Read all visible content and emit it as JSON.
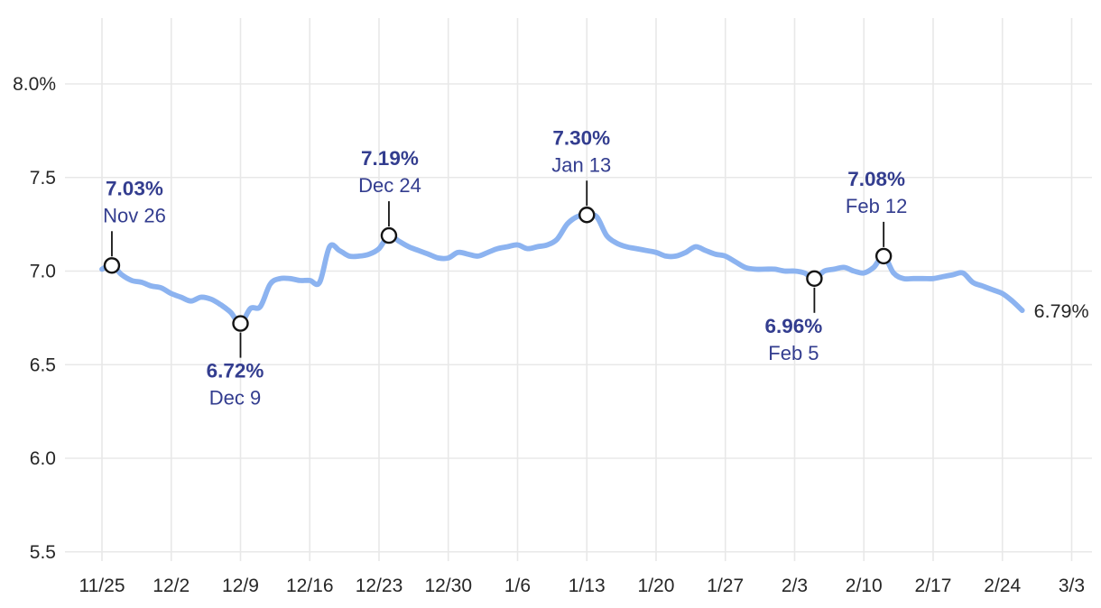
{
  "chart_data": {
    "type": "line",
    "x_axis": {
      "tick_labels": [
        "11/25",
        "12/2",
        "12/9",
        "12/16",
        "12/23",
        "12/30",
        "1/6",
        "1/13",
        "1/20",
        "1/27",
        "2/3",
        "2/10",
        "2/17",
        "2/24",
        "3/3"
      ],
      "tick_interval_days": 7
    },
    "y_axis": {
      "tick_labels": [
        "8.0%",
        "7.5",
        "7.0",
        "6.5",
        "6.0",
        "5.5"
      ],
      "tick_values": [
        8.0,
        7.5,
        7.0,
        6.5,
        6.0,
        5.5
      ]
    },
    "ylim": [
      5.5,
      8.0
    ],
    "grid": true,
    "series": {
      "start_label": "11/25",
      "values": [
        7.01,
        7.03,
        6.98,
        6.95,
        6.94,
        6.92,
        6.91,
        6.88,
        6.86,
        6.84,
        6.86,
        6.85,
        6.82,
        6.78,
        6.72,
        6.8,
        6.81,
        6.93,
        6.96,
        6.96,
        6.95,
        6.95,
        6.94,
        7.13,
        7.11,
        7.08,
        7.08,
        7.09,
        7.12,
        7.19,
        7.16,
        7.13,
        7.11,
        7.09,
        7.07,
        7.07,
        7.1,
        7.09,
        7.08,
        7.1,
        7.12,
        7.13,
        7.14,
        7.12,
        7.13,
        7.14,
        7.17,
        7.25,
        7.29,
        7.3,
        7.29,
        7.19,
        7.15,
        7.13,
        7.12,
        7.11,
        7.1,
        7.08,
        7.08,
        7.1,
        7.13,
        7.11,
        7.09,
        7.08,
        7.05,
        7.02,
        7.01,
        7.01,
        7.01,
        7.0,
        7.0,
        6.99,
        6.96,
        7.0,
        7.01,
        7.02,
        7.0,
        6.99,
        7.02,
        7.08,
        6.99,
        6.96,
        6.96,
        6.96,
        6.96,
        6.97,
        6.98,
        6.99,
        6.94,
        6.92,
        6.9,
        6.88,
        6.84,
        6.79
      ]
    },
    "annotations": [
      {
        "day_index": 1,
        "value": 7.03,
        "value_label": "7.03%",
        "date_label": "Nov 26",
        "placement": "above",
        "dx": 25
      },
      {
        "day_index": 14,
        "value": 6.72,
        "value_label": "6.72%",
        "date_label": "Dec 9",
        "placement": "below",
        "dx": -6
      },
      {
        "day_index": 29,
        "value": 7.19,
        "value_label": "7.19%",
        "date_label": "Dec 24",
        "placement": "above",
        "dx": 1
      },
      {
        "day_index": 49,
        "value": 7.3,
        "value_label": "7.30%",
        "date_label": "Jan 13",
        "placement": "above",
        "dx": -6
      },
      {
        "day_index": 72,
        "value": 6.96,
        "value_label": "6.96%",
        "date_label": "Feb 5",
        "placement": "below",
        "dx": -23
      },
      {
        "day_index": 79,
        "value": 7.08,
        "value_label": "7.08%",
        "date_label": "Feb 12",
        "placement": "above",
        "dx": -8
      }
    ],
    "end_label": "6.79%",
    "legend": null,
    "colors": {
      "line": "#8cb3f0",
      "grid": "#e8e8e8",
      "axis_text": "#262626",
      "annotation_text": "#333d8f",
      "marker_fill": "#ffffff",
      "marker_stroke": "#141414",
      "callout_line": "#141414",
      "end_label": "#262626",
      "background": "#ffffff"
    }
  }
}
